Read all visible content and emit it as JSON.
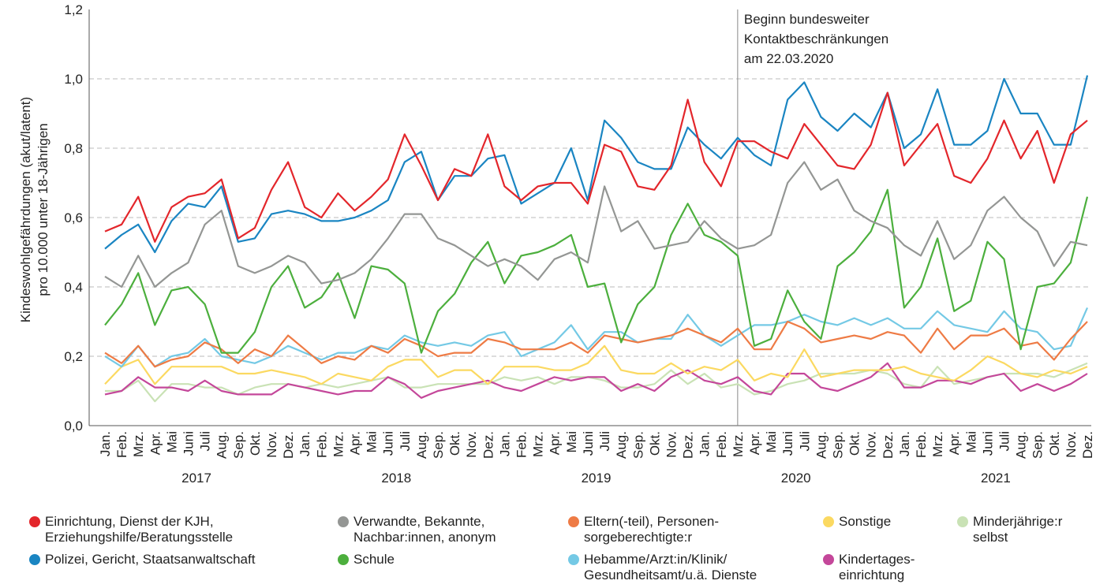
{
  "chart_data": {
    "type": "line",
    "y_label": [
      "Kindeswohlgefährdungen (akut/latent)",
      "pro 10.000 unter 18-Jährigen"
    ],
    "categories": [
      "Jan.",
      "Feb.",
      "Mrz.",
      "Apr.",
      "Mai",
      "Juni",
      "Juli",
      "Aug.",
      "Sep.",
      "Okt.",
      "Nov.",
      "Dez.",
      "Jan.",
      "Feb.",
      "Mrz.",
      "Apr.",
      "Mai",
      "Juni",
      "Juli",
      "Aug.",
      "Sep.",
      "Okt.",
      "Nov.",
      "Dez.",
      "Jan.",
      "Feb.",
      "Mrz.",
      "Apr.",
      "Mai",
      "Juni",
      "Juli",
      "Aug.",
      "Sep.",
      "Okt.",
      "Nov.",
      "Dez.",
      "Jan.",
      "Feb.",
      "Mrz.",
      "Apr.",
      "Mai",
      "Juni",
      "Juli",
      "Aug.",
      "Sep.",
      "Okt.",
      "Nov.",
      "Dez.",
      "Jan.",
      "Feb.",
      "Mrz.",
      "Apr.",
      "Mai",
      "Juni",
      "Juli",
      "Aug.",
      "Sep.",
      "Okt.",
      "Nov.",
      "Dez."
    ],
    "years": [
      "2017",
      "2018",
      "2019",
      "2020",
      "2021"
    ],
    "ylim": [
      0,
      1.2
    ],
    "yticks": [
      {
        "value": 0,
        "label": "0,0"
      },
      {
        "value": 0.2,
        "label": "0,2"
      },
      {
        "value": 0.4,
        "label": "0,4"
      },
      {
        "value": 0.6,
        "label": "0,6"
      },
      {
        "value": 0.8,
        "label": "0,8"
      },
      {
        "value": 1.0,
        "label": "1,0"
      },
      {
        "value": 1.2,
        "label": "1,2"
      }
    ],
    "grid": true,
    "annotation": {
      "index": 38,
      "text": [
        "Beginn bundesweiter",
        "Kontaktbeschränkungen",
        "am 22.03.2020"
      ]
    },
    "series": [
      {
        "name": "Einrichtung, Dienst der KJH,\nErziehungshilfe/Beratungsstelle",
        "color": "#e3262b",
        "values": [
          0.56,
          0.58,
          0.66,
          0.53,
          0.63,
          0.66,
          0.67,
          0.71,
          0.54,
          0.57,
          0.68,
          0.76,
          0.63,
          0.6,
          0.67,
          0.62,
          0.66,
          0.71,
          0.84,
          0.75,
          0.65,
          0.74,
          0.72,
          0.84,
          0.69,
          0.65,
          0.69,
          0.7,
          0.7,
          0.64,
          0.81,
          0.79,
          0.69,
          0.68,
          0.75,
          0.94,
          0.76,
          0.69,
          0.82,
          0.82,
          0.79,
          0.77,
          0.87,
          0.81,
          0.75,
          0.74,
          0.81,
          0.96,
          0.75,
          0.81,
          0.87,
          0.72,
          0.7,
          0.77,
          0.88,
          0.77,
          0.85,
          0.7,
          0.84,
          0.88
        ]
      },
      {
        "name": "Polizei, Gericht, Staatsanwaltschaft",
        "color": "#1a85c2",
        "values": [
          0.51,
          0.55,
          0.58,
          0.5,
          0.59,
          0.64,
          0.63,
          0.69,
          0.53,
          0.54,
          0.61,
          0.62,
          0.61,
          0.59,
          0.59,
          0.6,
          0.62,
          0.65,
          0.76,
          0.79,
          0.65,
          0.72,
          0.72,
          0.77,
          0.78,
          0.64,
          0.67,
          0.7,
          0.8,
          0.65,
          0.88,
          0.83,
          0.76,
          0.74,
          0.74,
          0.86,
          0.81,
          0.77,
          0.83,
          0.78,
          0.75,
          0.94,
          0.99,
          0.89,
          0.85,
          0.9,
          0.86,
          0.96,
          0.8,
          0.84,
          0.97,
          0.81,
          0.81,
          0.85,
          1.0,
          0.9,
          0.9,
          0.81,
          0.81,
          1.01
        ]
      },
      {
        "name": "Verwandte, Bekannte,\nNachbar:innen, anonym",
        "color": "#949694",
        "values": [
          0.43,
          0.4,
          0.49,
          0.4,
          0.44,
          0.47,
          0.58,
          0.62,
          0.46,
          0.44,
          0.46,
          0.49,
          0.47,
          0.41,
          0.42,
          0.44,
          0.48,
          0.54,
          0.61,
          0.61,
          0.54,
          0.52,
          0.49,
          0.46,
          0.48,
          0.46,
          0.42,
          0.48,
          0.5,
          0.47,
          0.69,
          0.56,
          0.59,
          0.51,
          0.52,
          0.53,
          0.59,
          0.54,
          0.51,
          0.52,
          0.55,
          0.7,
          0.76,
          0.68,
          0.71,
          0.62,
          0.59,
          0.57,
          0.52,
          0.49,
          0.59,
          0.48,
          0.52,
          0.62,
          0.66,
          0.6,
          0.56,
          0.46,
          0.53,
          0.52
        ]
      },
      {
        "name": "Schule",
        "color": "#4caf3d",
        "values": [
          0.29,
          0.35,
          0.44,
          0.29,
          0.39,
          0.4,
          0.35,
          0.21,
          0.21,
          0.27,
          0.4,
          0.46,
          0.34,
          0.37,
          0.44,
          0.31,
          0.46,
          0.45,
          0.41,
          0.21,
          0.33,
          0.38,
          0.47,
          0.53,
          0.41,
          0.49,
          0.5,
          0.52,
          0.55,
          0.4,
          0.41,
          0.24,
          0.35,
          0.4,
          0.55,
          0.64,
          0.55,
          0.53,
          0.49,
          0.23,
          0.25,
          0.39,
          0.3,
          0.25,
          0.46,
          0.5,
          0.56,
          0.68,
          0.34,
          0.4,
          0.54,
          0.33,
          0.36,
          0.53,
          0.48,
          0.22,
          0.4,
          0.41,
          0.47,
          0.66
        ]
      },
      {
        "name": "Eltern(-teil), Personen-\nsorgeberechtigte:r",
        "color": "#ee7b45",
        "values": [
          0.21,
          0.18,
          0.23,
          0.17,
          0.19,
          0.2,
          0.24,
          0.22,
          0.18,
          0.22,
          0.2,
          0.26,
          0.22,
          0.18,
          0.2,
          0.19,
          0.23,
          0.21,
          0.25,
          0.23,
          0.2,
          0.21,
          0.21,
          0.25,
          0.24,
          0.22,
          0.22,
          0.22,
          0.24,
          0.21,
          0.26,
          0.25,
          0.24,
          0.25,
          0.26,
          0.28,
          0.26,
          0.24,
          0.28,
          0.22,
          0.22,
          0.3,
          0.28,
          0.24,
          0.25,
          0.26,
          0.25,
          0.27,
          0.26,
          0.21,
          0.28,
          0.22,
          0.26,
          0.26,
          0.28,
          0.23,
          0.24,
          0.19,
          0.25,
          0.3
        ]
      },
      {
        "name": "Hebamme/Arzt:in/Klinik/\nGesundheitsamt/u.ä. Dienste",
        "color": "#74c9e5",
        "values": [
          0.2,
          0.17,
          0.23,
          0.17,
          0.2,
          0.21,
          0.25,
          0.2,
          0.19,
          0.18,
          0.2,
          0.23,
          0.21,
          0.19,
          0.21,
          0.21,
          0.23,
          0.22,
          0.26,
          0.24,
          0.23,
          0.24,
          0.23,
          0.26,
          0.27,
          0.2,
          0.22,
          0.24,
          0.29,
          0.22,
          0.27,
          0.27,
          0.24,
          0.25,
          0.25,
          0.32,
          0.26,
          0.23,
          0.26,
          0.29,
          0.29,
          0.3,
          0.32,
          0.3,
          0.29,
          0.31,
          0.29,
          0.31,
          0.28,
          0.28,
          0.33,
          0.29,
          0.28,
          0.27,
          0.33,
          0.28,
          0.27,
          0.22,
          0.23,
          0.34
        ]
      },
      {
        "name": "Sonstige",
        "color": "#fbd961",
        "values": [
          0.12,
          0.17,
          0.19,
          0.12,
          0.17,
          0.17,
          0.17,
          0.17,
          0.15,
          0.15,
          0.16,
          0.15,
          0.14,
          0.12,
          0.15,
          0.14,
          0.13,
          0.17,
          0.19,
          0.19,
          0.14,
          0.16,
          0.16,
          0.12,
          0.17,
          0.17,
          0.17,
          0.16,
          0.16,
          0.18,
          0.23,
          0.16,
          0.15,
          0.15,
          0.18,
          0.15,
          0.17,
          0.16,
          0.19,
          0.13,
          0.15,
          0.14,
          0.22,
          0.14,
          0.15,
          0.16,
          0.16,
          0.16,
          0.17,
          0.15,
          0.14,
          0.13,
          0.16,
          0.2,
          0.18,
          0.15,
          0.14,
          0.16,
          0.15,
          0.17
        ]
      },
      {
        "name": "Kindertages-\neinrichtung",
        "color": "#c4479a",
        "values": [
          0.09,
          0.1,
          0.14,
          0.11,
          0.11,
          0.1,
          0.13,
          0.1,
          0.09,
          0.09,
          0.09,
          0.12,
          0.11,
          0.1,
          0.09,
          0.1,
          0.1,
          0.14,
          0.12,
          0.08,
          0.1,
          0.11,
          0.12,
          0.13,
          0.11,
          0.1,
          0.12,
          0.14,
          0.13,
          0.14,
          0.14,
          0.1,
          0.12,
          0.1,
          0.14,
          0.16,
          0.13,
          0.12,
          0.14,
          0.1,
          0.09,
          0.15,
          0.15,
          0.11,
          0.1,
          0.12,
          0.14,
          0.18,
          0.11,
          0.11,
          0.13,
          0.13,
          0.12,
          0.14,
          0.15,
          0.1,
          0.12,
          0.1,
          0.12,
          0.15
        ]
      },
      {
        "name": "Minderjährige:r\nselbst",
        "color": "#c9e2b5",
        "values": [
          0.1,
          0.1,
          0.13,
          0.07,
          0.12,
          0.12,
          0.11,
          0.11,
          0.09,
          0.11,
          0.12,
          0.12,
          0.11,
          0.12,
          0.11,
          0.12,
          0.13,
          0.14,
          0.11,
          0.11,
          0.12,
          0.12,
          0.12,
          0.12,
          0.14,
          0.13,
          0.14,
          0.12,
          0.14,
          0.14,
          0.13,
          0.11,
          0.11,
          0.12,
          0.16,
          0.12,
          0.15,
          0.11,
          0.12,
          0.09,
          0.1,
          0.12,
          0.13,
          0.15,
          0.15,
          0.15,
          0.16,
          0.15,
          0.12,
          0.11,
          0.17,
          0.12,
          0.13,
          0.14,
          0.15,
          0.15,
          0.15,
          0.14,
          0.16,
          0.18
        ]
      }
    ]
  }
}
